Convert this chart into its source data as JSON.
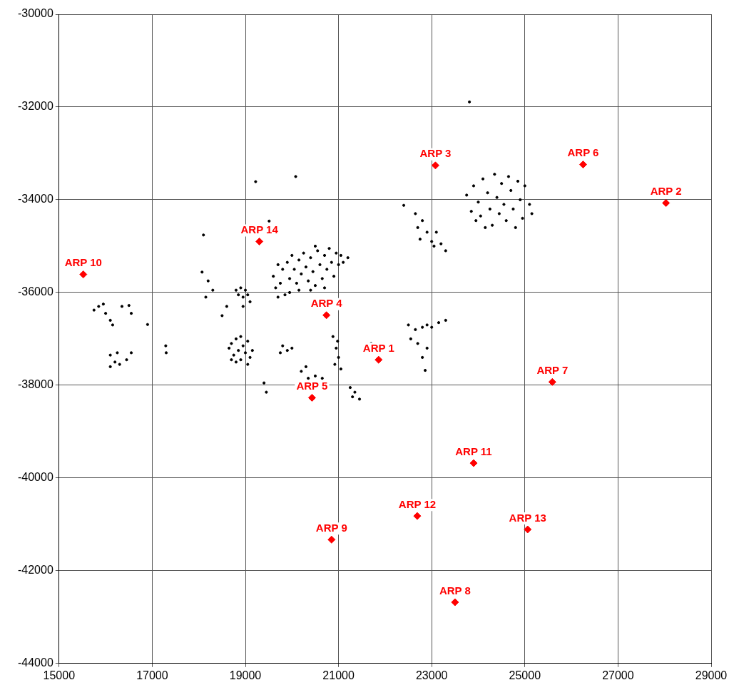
{
  "chart_data": {
    "type": "scatter",
    "xlim": [
      15000,
      29000
    ],
    "xticks": [
      15000,
      17000,
      19000,
      21000,
      23000,
      25000,
      27000,
      29000
    ],
    "ylim": [
      -44000,
      -30000
    ],
    "yticks": [
      -44000,
      -42000,
      -40000,
      -38000,
      -36000,
      -34000,
      -32000,
      -30000
    ],
    "grid": true,
    "legend": false,
    "series": [
      {
        "color": "#000000",
        "marker": "circle",
        "x": [
          15750,
          15850,
          15950,
          16000,
          16100,
          16150,
          16350,
          16500,
          16550,
          16100,
          16200,
          16250,
          16100,
          16300,
          16450,
          16550,
          16900,
          17290,
          17300,
          18070,
          18100,
          18200,
          18300,
          18150,
          19220,
          20080,
          19510,
          23810,
          22400,
          18500,
          18600,
          18800,
          18850,
          18900,
          18950,
          19000,
          19050,
          19100,
          18950,
          18650,
          18700,
          18750,
          18800,
          18850,
          18900,
          18950,
          19000,
          19050,
          19100,
          19150,
          18900,
          18800,
          19050,
          18700,
          19600,
          19650,
          19700,
          19750,
          19800,
          19850,
          19900,
          19950,
          20000,
          20050,
          20100,
          20150,
          20200,
          20250,
          20300,
          20350,
          20400,
          20450,
          20500,
          20550,
          20600,
          20650,
          20700,
          20750,
          20800,
          20850,
          20900,
          20950,
          21000,
          21050,
          21100,
          21200,
          20150,
          19950,
          20400,
          20700,
          19700,
          20500,
          19800,
          19900,
          20000,
          19750,
          20880,
          20950,
          21000,
          20920,
          21050,
          20980,
          20200,
          20350,
          20500,
          20650,
          20300,
          21250,
          21350,
          21450,
          21300,
          19400,
          19450,
          21700,
          22500,
          22550,
          22650,
          22800,
          22900,
          23000,
          23150,
          23300,
          22700,
          22900,
          22860,
          22800,
          22650,
          22700,
          22750,
          22800,
          22900,
          23000,
          23100,
          23200,
          23300,
          23050,
          23750,
          23850,
          23900,
          24000,
          24050,
          24100,
          24200,
          24250,
          24300,
          24350,
          24400,
          24450,
          24500,
          24550,
          24600,
          24650,
          24700,
          24750,
          24800,
          24850,
          24900,
          24950,
          25000,
          25100,
          25150,
          24150,
          23950
        ],
        "values": [
          -36380,
          -36300,
          -36250,
          -36450,
          -36600,
          -36700,
          -36300,
          -36280,
          -36450,
          -37350,
          -37500,
          -37300,
          -37600,
          -37550,
          -37450,
          -37300,
          -36690,
          -37150,
          -37300,
          -35560,
          -34760,
          -35750,
          -35950,
          -36100,
          -33610,
          -33500,
          -34460,
          -31890,
          -34120,
          -36500,
          -36300,
          -35950,
          -36050,
          -35900,
          -36100,
          -35950,
          -36050,
          -36200,
          -36300,
          -37200,
          -37100,
          -37350,
          -37000,
          -37250,
          -37450,
          -37150,
          -37300,
          -37550,
          -37400,
          -37250,
          -36950,
          -37500,
          -37050,
          -37450,
          -35650,
          -35900,
          -36100,
          -35800,
          -35500,
          -36050,
          -35350,
          -35700,
          -35200,
          -35500,
          -35800,
          -35300,
          -35600,
          -35150,
          -35450,
          -35750,
          -35250,
          -35550,
          -35850,
          -35100,
          -35400,
          -35700,
          -35200,
          -35500,
          -35050,
          -35350,
          -35650,
          -35150,
          -35400,
          -35200,
          -35350,
          -35250,
          -35950,
          -36000,
          -35950,
          -35900,
          -35400,
          -35000,
          -37150,
          -37250,
          -37200,
          -37300,
          -36950,
          -37200,
          -37400,
          -37550,
          -37650,
          -37050,
          -37700,
          -37850,
          -37800,
          -37850,
          -37600,
          -38050,
          -38150,
          -38300,
          -38250,
          -37950,
          -38150,
          -37100,
          -36700,
          -37000,
          -36800,
          -36750,
          -36700,
          -36750,
          -36650,
          -36600,
          -37100,
          -37200,
          -37680,
          -37400,
          -34300,
          -34600,
          -34850,
          -34450,
          -34700,
          -34900,
          -34700,
          -34950,
          -35100,
          -35000,
          -33900,
          -34250,
          -33700,
          -34050,
          -34350,
          -33550,
          -33850,
          -34200,
          -34550,
          -33450,
          -33950,
          -34300,
          -33650,
          -34100,
          -34450,
          -33500,
          -33800,
          -34200,
          -34600,
          -33600,
          -34000,
          -34400,
          -33700,
          -34100,
          -34300,
          -34600,
          -34450
        ]
      },
      {
        "color": "#ff0000",
        "marker": "diamond",
        "x": [
          21860,
          28030,
          23080,
          20740,
          20430,
          26250,
          25590,
          23500,
          20850,
          15520,
          23900,
          22690,
          25060,
          19300
        ],
        "values": [
          -37450,
          -34070,
          -33260,
          -36490,
          -38270,
          -33240,
          -37930,
          -42680,
          -41330,
          -35610,
          -39680,
          -40820,
          -41110,
          -34900
        ]
      }
    ],
    "annotations": [
      {
        "text": "ARP 1",
        "x": 21860,
        "y": -37450
      },
      {
        "text": "ARP 2",
        "x": 28030,
        "y": -34070
      },
      {
        "text": "ARP 3",
        "x": 23080,
        "y": -33260
      },
      {
        "text": "ARP 4",
        "x": 20740,
        "y": -36490
      },
      {
        "text": "ARP 5",
        "x": 20430,
        "y": -38270
      },
      {
        "text": "ARP 6",
        "x": 26250,
        "y": -33240
      },
      {
        "text": "ARP 7",
        "x": 25590,
        "y": -37930
      },
      {
        "text": "ARP 8",
        "x": 23500,
        "y": -42680
      },
      {
        "text": "ARP 9",
        "x": 20850,
        "y": -41330
      },
      {
        "text": "ARP 10",
        "x": 15520,
        "y": -35610
      },
      {
        "text": "ARP 11",
        "x": 23900,
        "y": -39680
      },
      {
        "text": "ARP 12",
        "x": 22690,
        "y": -40820
      },
      {
        "text": "ARP 13",
        "x": 25060,
        "y": -41110
      },
      {
        "text": "ARP 14",
        "x": 19300,
        "y": -34900
      }
    ]
  }
}
